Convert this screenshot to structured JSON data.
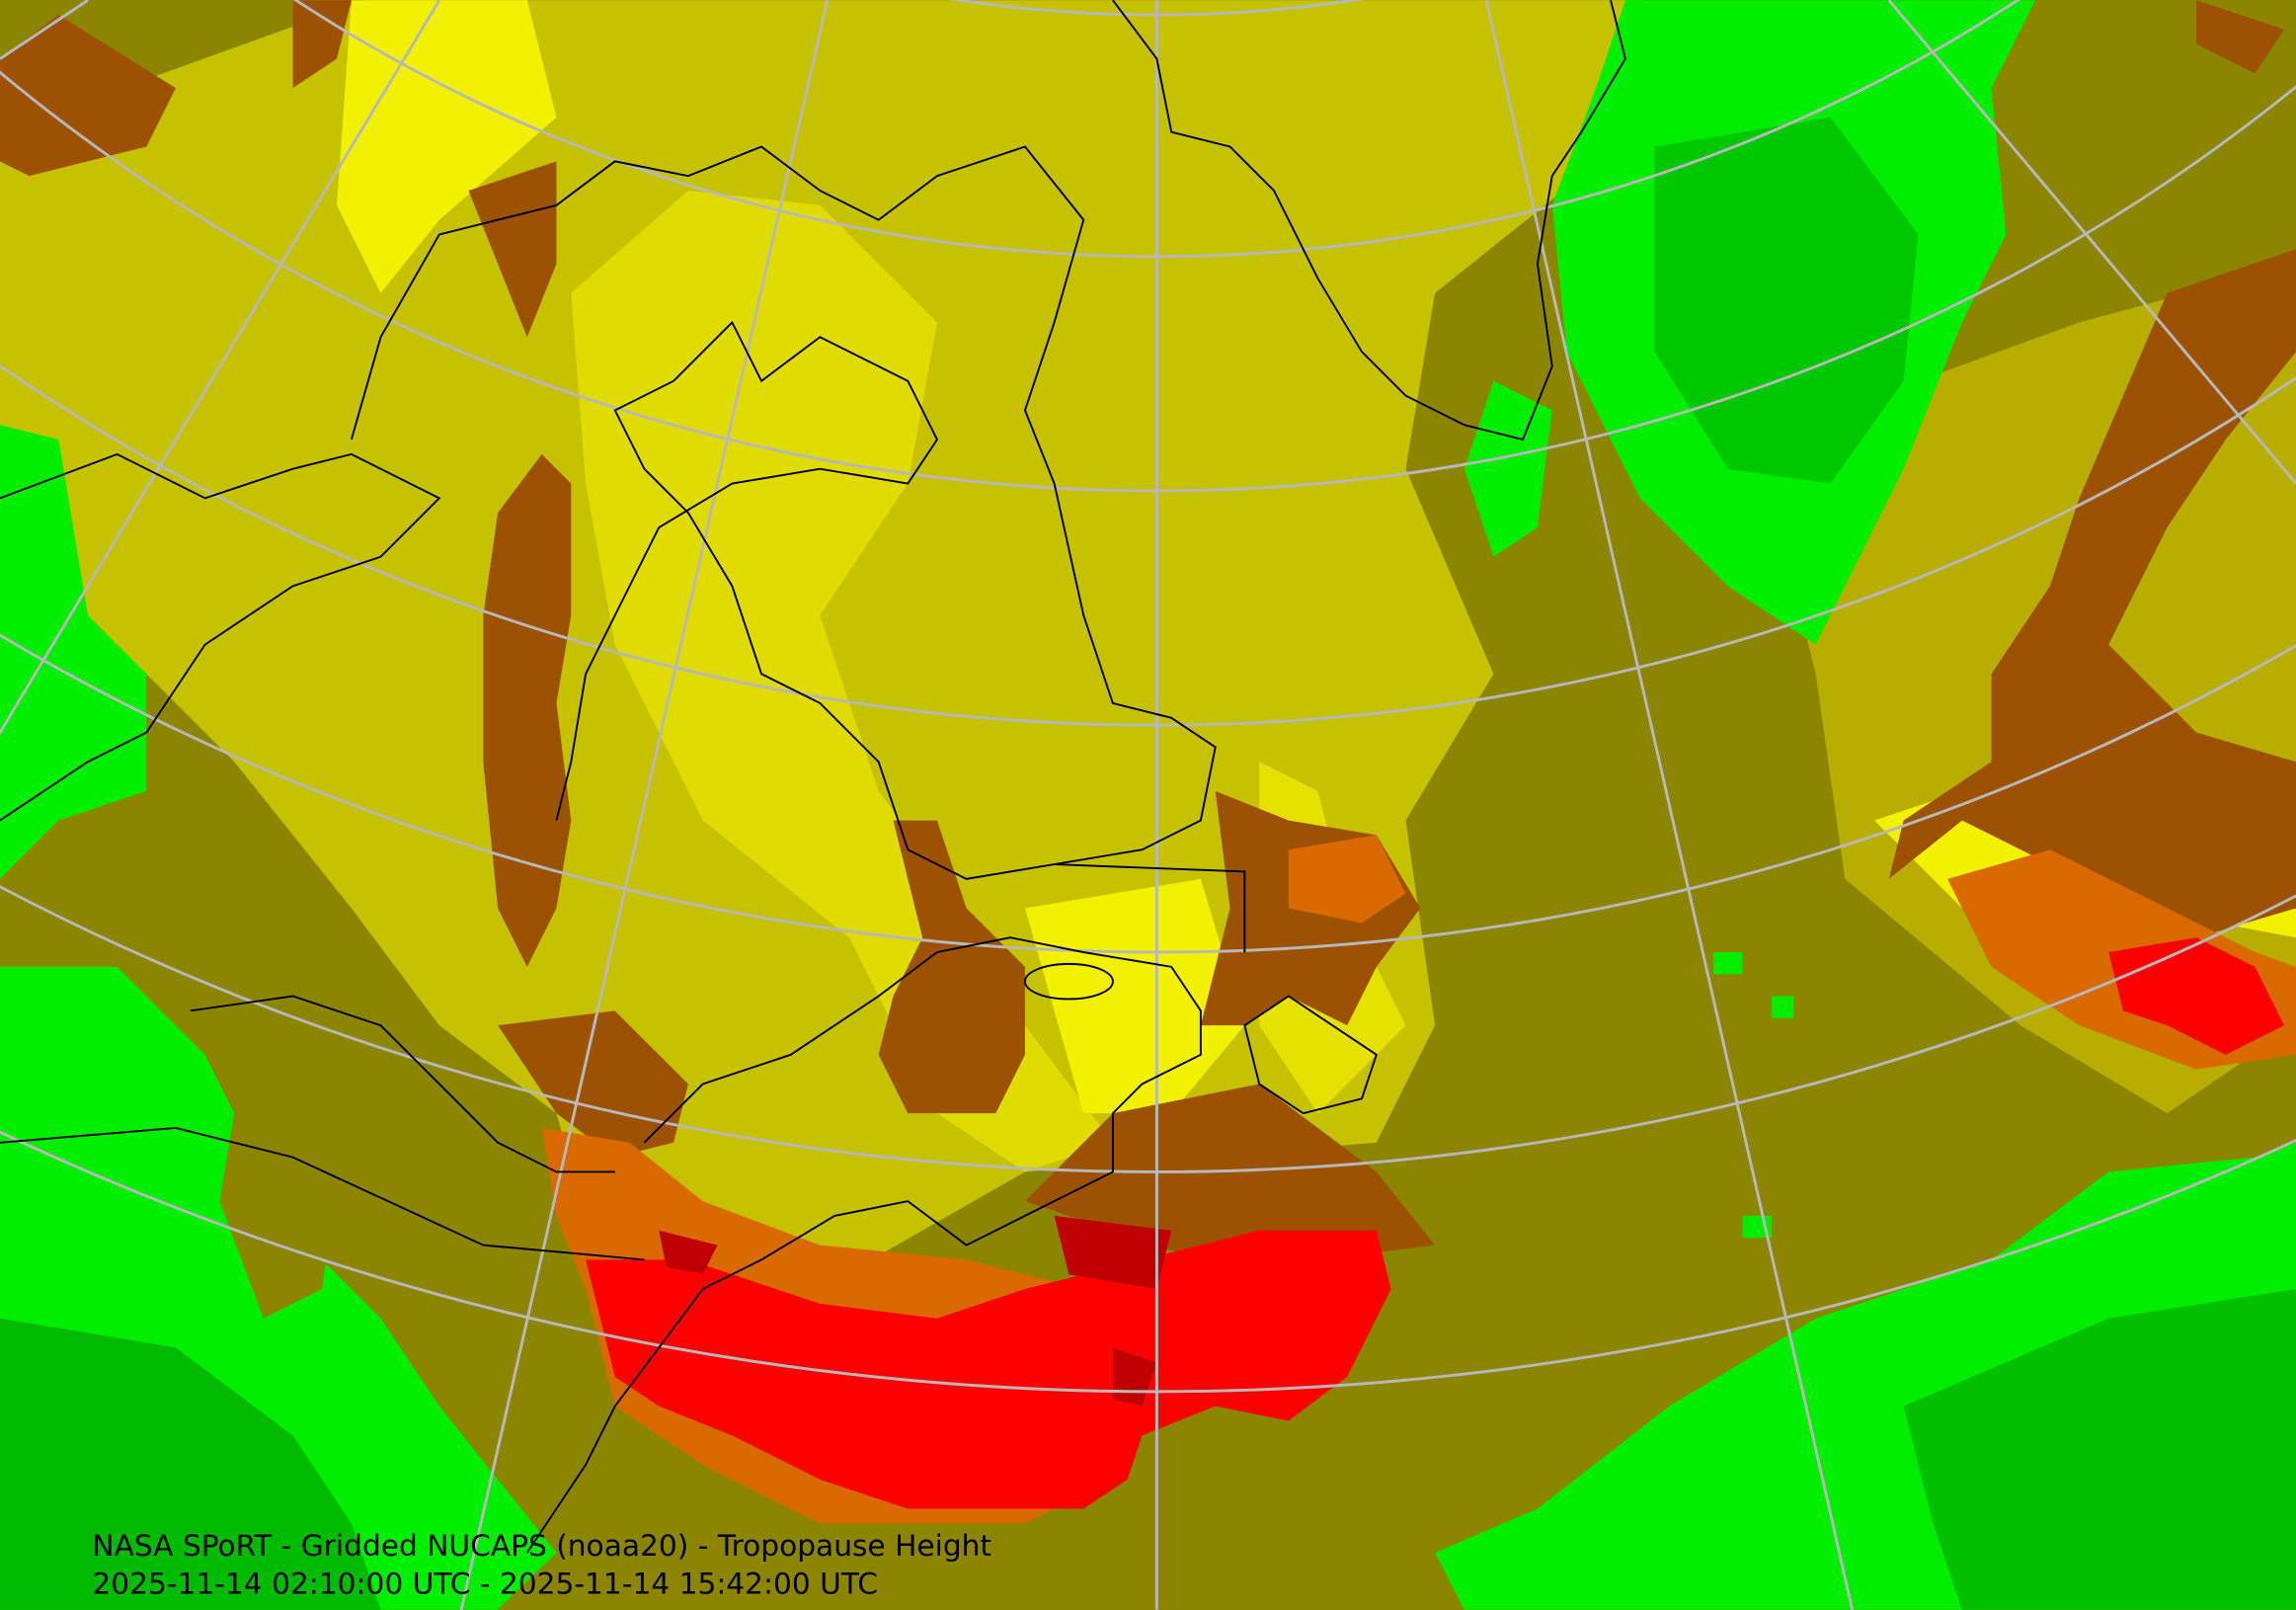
{
  "caption": {
    "title": "NASA SPoRT - Gridded NUCAPS (noaa20) - Tropopause Height",
    "time_range": "2025-11-14 02:10:00 UTC - 2025-11-14 15:42:00 UTC"
  }
}
